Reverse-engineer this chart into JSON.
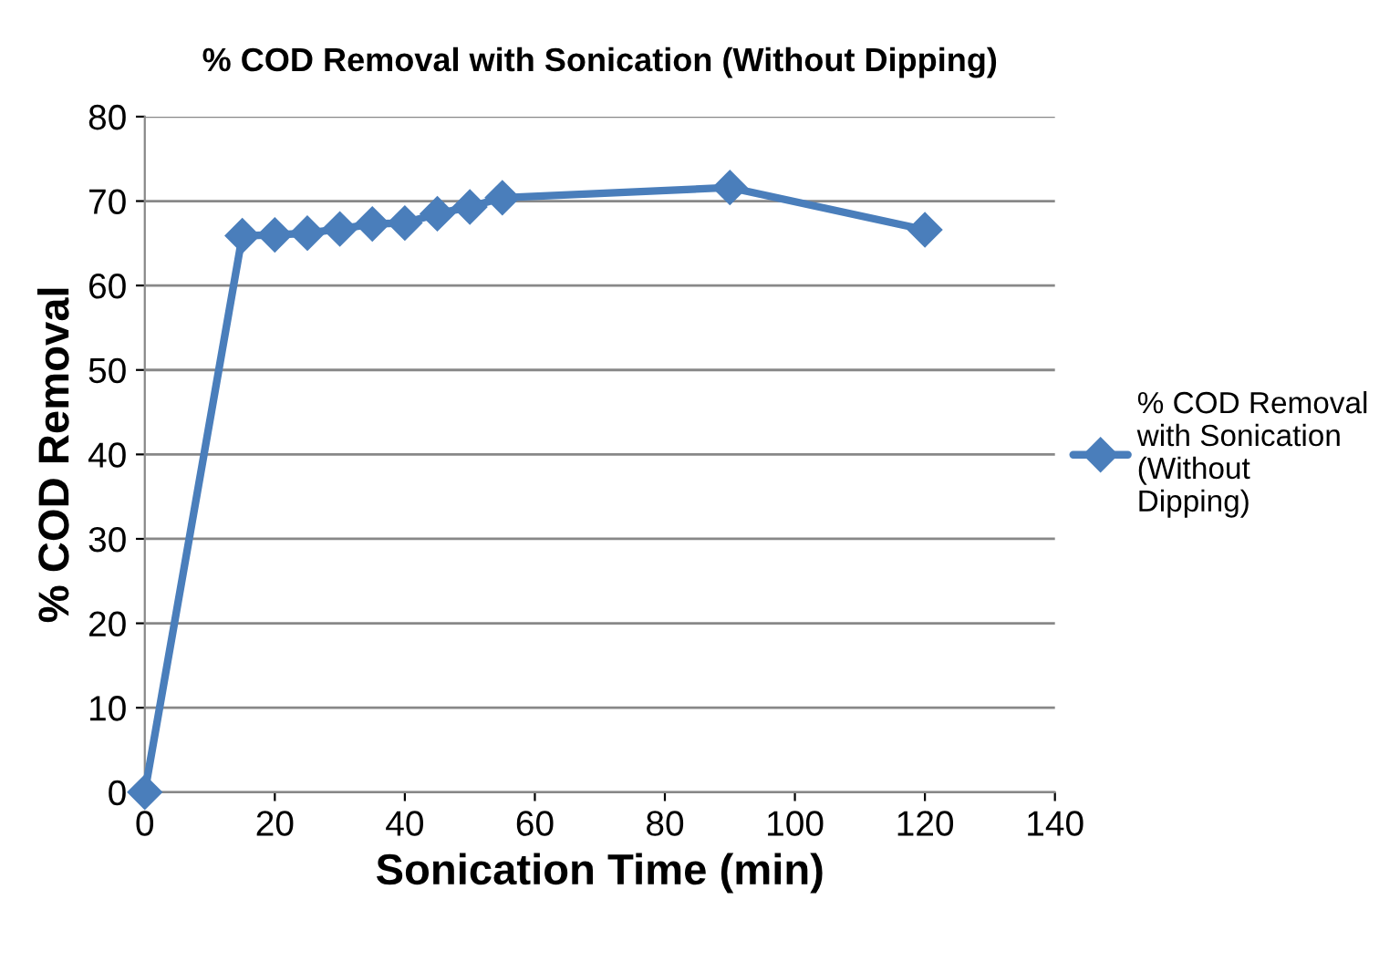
{
  "chart_data": {
    "type": "line",
    "title": "% COD Removal with Sonication (Without Dipping)",
    "xlabel": "Sonication Time (min)",
    "ylabel": "% COD Removal",
    "x": [
      0,
      15,
      20,
      25,
      30,
      35,
      40,
      45,
      50,
      55,
      90,
      120
    ],
    "series": [
      {
        "name": "% COD Removal with Sonication (Without Dipping)",
        "color": "#4a7ebb",
        "values": [
          0,
          65.9,
          66.0,
          66.2,
          66.7,
          67.3,
          67.4,
          68.5,
          69.3,
          70.4,
          71.6,
          66.6
        ]
      }
    ],
    "xlim": [
      0,
      140
    ],
    "xticks": [
      0,
      20,
      40,
      60,
      80,
      100,
      120,
      140
    ],
    "ylim": [
      0,
      80
    ],
    "yticks": [
      0,
      10,
      20,
      30,
      40,
      50,
      60,
      70,
      80
    ],
    "grid": "y",
    "legend": "right",
    "marker": "diamond",
    "line_style": "solid"
  }
}
